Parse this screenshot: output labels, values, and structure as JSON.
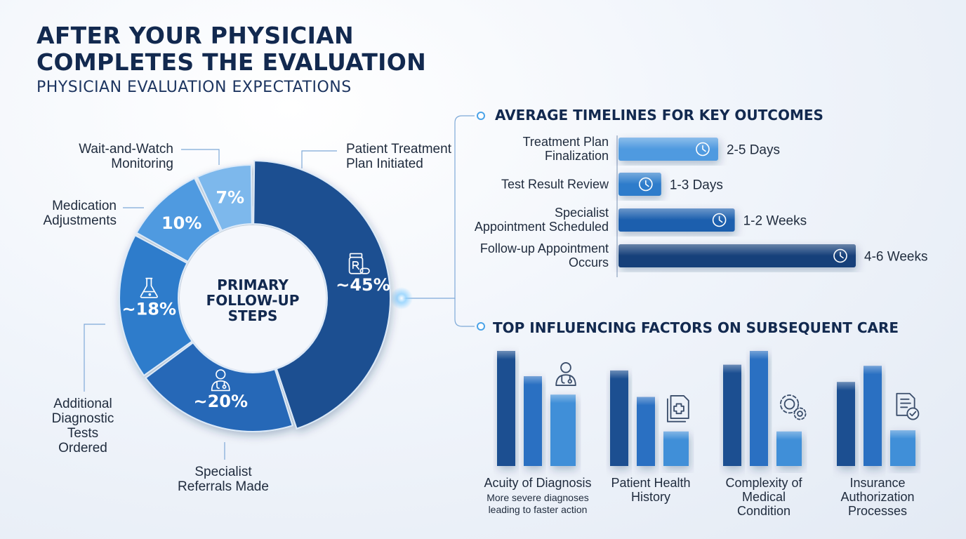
{
  "header": {
    "title": "AFTER YOUR PHYSICIAN COMPLETES THE EVALUATION",
    "subtitle": "PHYSICIAN EVALUATION EXPECTATIONS"
  },
  "chart_data": [
    {
      "type": "pie",
      "center_label": "PRIMARY FOLLOW-UP STEPS",
      "slices": [
        {
          "label": "Patient Treatment Plan Initiated",
          "value": 45,
          "value_label": "~45%",
          "color": "#1c4f91",
          "icon": "prescription-bottle-icon"
        },
        {
          "label": "Specialist Referrals Made",
          "value": 20,
          "value_label": "~20%",
          "color": "#2768b7",
          "icon": "doctor-icon"
        },
        {
          "label": "Additional Diagnostic Tests Ordered",
          "value": 18,
          "value_label": "~18%",
          "color": "#2f7ccb",
          "icon": "flask-icon"
        },
        {
          "label": "Medication Adjustments",
          "value": 10,
          "value_label": "10%",
          "color": "#4f9ae0",
          "icon": ""
        },
        {
          "label": "Wait-and-Watch Monitoring",
          "value": 7,
          "value_label": "7%",
          "color": "#7db8ec",
          "icon": ""
        }
      ]
    },
    {
      "type": "bar",
      "orientation": "horizontal",
      "title": "AVERAGE TIMELINES FOR KEY OUTCOMES",
      "categories": [
        "Treatment Plan Finalization",
        "Test Result Review",
        "Specialist Appointment Scheduled",
        "Follow-up Appointment Occurs"
      ],
      "value_labels": [
        "2-5 Days",
        "1-3 Days",
        "1-2 Weeks",
        "4-6 Weeks"
      ],
      "values": [
        0.42,
        0.18,
        0.49,
        1.0
      ],
      "colors": [
        "#4f9ae0",
        "#2f7ccb",
        "#1f5fae",
        "#173f7a"
      ],
      "icon": "clock-icon"
    },
    {
      "type": "bar",
      "title": "TOP INFLUENCING FACTORS ON SUBSEQUENT CARE",
      "ylim": [
        0,
        1
      ],
      "groups": [
        {
          "label": "Acuity of Diagnosis",
          "note": "More severe diagnoses leading to faster action",
          "values": [
            1.0,
            0.78,
            0.62
          ],
          "icon": "doctor-icon"
        },
        {
          "label": "Patient Health History",
          "note": "",
          "values": [
            0.83,
            0.6,
            0.3
          ],
          "icon": "medical-record-icon"
        },
        {
          "label": "Complexity of Medical Condition",
          "note": "",
          "values": [
            0.88,
            1.0,
            0.3
          ],
          "icon": "gears-icon"
        },
        {
          "label": "Insurance Authorization Processes",
          "note": "",
          "values": [
            0.73,
            0.87,
            0.31
          ],
          "icon": "document-check-icon"
        }
      ],
      "colors": [
        "#1c4f91",
        "#2a70c2",
        "#3f8fd8"
      ]
    }
  ]
}
